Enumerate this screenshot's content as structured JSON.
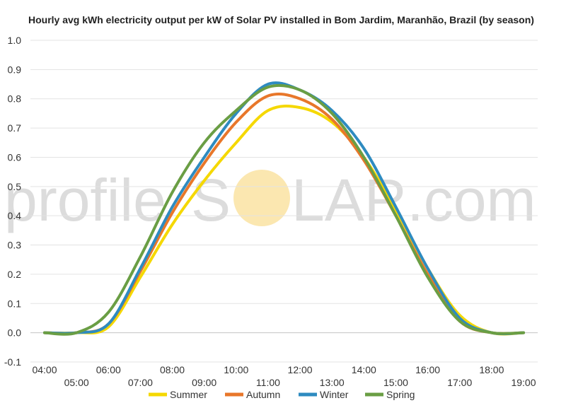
{
  "chart_data": {
    "type": "line",
    "title": "Hourly avg kWh electricity output per kW of Solar PV installed in Bom Jardim, Maranhão, Brazil (by season)",
    "xlabel": "",
    "ylabel": "",
    "x_ticks": [
      "04:00",
      "05:00",
      "06:00",
      "07:00",
      "08:00",
      "09:00",
      "10:00",
      "11:00",
      "12:00",
      "13:00",
      "14:00",
      "15:00",
      "16:00",
      "17:00",
      "18:00",
      "19:00"
    ],
    "x_range": [
      4,
      19
    ],
    "y_ticks": [
      "1.0",
      "0.9",
      "0.8",
      "0.7",
      "0.6",
      "0.5",
      "0.4",
      "0.3",
      "0.2",
      "0.1",
      "0.0",
      "-0.1"
    ],
    "ylim": [
      -0.1,
      1.0
    ],
    "grid": true,
    "legend": "bottom",
    "x": [
      4,
      5,
      6,
      7,
      8,
      9,
      10,
      11,
      12,
      13,
      14,
      15,
      16,
      17,
      18,
      19
    ],
    "series": [
      {
        "name": "Summer",
        "color": "#f5d800",
        "values": [
          0,
          0,
          0.02,
          0.19,
          0.37,
          0.52,
          0.65,
          0.76,
          0.77,
          0.72,
          0.6,
          0.42,
          0.22,
          0.06,
          0,
          0
        ]
      },
      {
        "name": "Autumn",
        "color": "#e8772a",
        "values": [
          0,
          0,
          0.03,
          0.21,
          0.41,
          0.58,
          0.72,
          0.81,
          0.8,
          0.73,
          0.59,
          0.4,
          0.2,
          0.04,
          0,
          0
        ]
      },
      {
        "name": "Winter",
        "color": "#2e8bc0",
        "values": [
          0,
          0,
          0.03,
          0.22,
          0.43,
          0.6,
          0.75,
          0.85,
          0.83,
          0.76,
          0.63,
          0.43,
          0.22,
          0.05,
          0,
          0
        ]
      },
      {
        "name": "Spring",
        "color": "#6a9e44",
        "values": [
          0,
          0,
          0.07,
          0.26,
          0.48,
          0.65,
          0.76,
          0.84,
          0.83,
          0.75,
          0.6,
          0.4,
          0.19,
          0.04,
          0,
          0
        ]
      }
    ]
  },
  "watermark": {
    "left_text": "profile",
    "brand_text": "S",
    "right_text": "LAR.com",
    "sun_color": "#fbe7b0"
  }
}
